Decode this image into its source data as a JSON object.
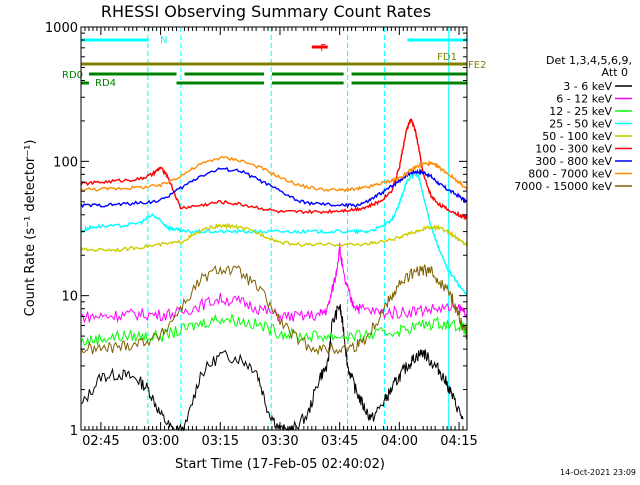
{
  "chart_data": {
    "type": "line",
    "title": "RHESSI Observing Summary Count Rates",
    "xlabel": "Start Time (17-Feb-05 02:40:02)",
    "ylabel": "Count Rate (s⁻¹ detector⁻¹)",
    "yscale": "log",
    "ylim": [
      1,
      1000
    ],
    "xlim_minutes": [
      0,
      97
    ],
    "x_ticks": [
      {
        "label": "02:45",
        "min": 5
      },
      {
        "label": "03:00",
        "min": 20
      },
      {
        "label": "03:15",
        "min": 35
      },
      {
        "label": "03:30",
        "min": 50
      },
      {
        "label": "03:45",
        "min": 65
      },
      {
        "label": "04:00",
        "min": 80
      },
      {
        "label": "04:15",
        "min": 95
      }
    ],
    "y_ticks": [
      {
        "label": "1",
        "value": 1
      },
      {
        "label": "10",
        "value": 10
      },
      {
        "label": "100",
        "value": 100
      },
      {
        "label": "1000",
        "value": 1000
      }
    ],
    "legend_title_1": "Det 1,3,4,5,6,9,",
    "legend_title_2": "Att 0",
    "legend_placement": "right",
    "series": [
      {
        "name": "3 - 6 keV",
        "color": "#000000",
        "x": [
          0,
          5,
          10,
          14,
          17,
          20,
          23,
          26,
          30,
          35,
          40,
          44,
          47,
          50,
          53,
          57,
          60,
          62,
          63,
          65,
          66,
          67,
          69,
          71,
          73,
          76,
          78,
          80,
          82,
          84,
          86,
          88,
          90,
          92,
          94,
          96
        ],
        "y": [
          1.5,
          2.5,
          2.6,
          2.4,
          2.0,
          1.3,
          1.0,
          1.0,
          2.6,
          3.6,
          3.4,
          2.8,
          1.4,
          1.0,
          1.0,
          1.3,
          2.5,
          3.0,
          6.0,
          8.5,
          5.5,
          3.0,
          2.0,
          1.5,
          1.2,
          1.6,
          2.0,
          2.5,
          3.0,
          3.5,
          3.8,
          3.2,
          2.8,
          2.2,
          1.6,
          1.2
        ]
      },
      {
        "name": "6 - 12 keV",
        "color": "#ff00ff",
        "x": [
          0,
          5,
          10,
          15,
          20,
          25,
          30,
          35,
          40,
          45,
          50,
          55,
          60,
          62,
          64,
          65,
          66,
          68,
          70,
          75,
          80,
          85,
          90,
          95,
          97
        ],
        "y": [
          7.0,
          7.0,
          7.2,
          7.3,
          7.2,
          7.5,
          8.5,
          9.5,
          9.0,
          8.0,
          7.0,
          7.0,
          7.2,
          8.0,
          14,
          23,
          14,
          9.0,
          8.0,
          7.5,
          7.5,
          7.8,
          8.0,
          8.0,
          7.5
        ]
      },
      {
        "name": "12 - 25 keV",
        "color": "#00ff00",
        "x": [
          0,
          5,
          10,
          15,
          20,
          25,
          30,
          35,
          40,
          45,
          50,
          55,
          60,
          65,
          70,
          75,
          80,
          85,
          90,
          95,
          97
        ],
        "y": [
          4.5,
          4.8,
          5.0,
          5.0,
          5.0,
          5.5,
          6.2,
          6.8,
          6.5,
          6.0,
          5.3,
          5.0,
          5.0,
          5.0,
          5.0,
          5.2,
          5.5,
          6.0,
          6.3,
          6.0,
          5.5
        ]
      },
      {
        "name": "25 - 50 keV",
        "color": "#00ffff",
        "x": [
          0,
          2,
          5,
          10,
          15,
          18,
          20,
          22,
          24,
          26,
          30,
          35,
          40,
          45,
          50,
          55,
          60,
          65,
          69,
          72,
          75,
          78,
          80,
          81,
          82,
          84,
          85,
          86,
          88,
          90,
          92,
          95,
          97
        ],
        "y": [
          30,
          32,
          33,
          33,
          35,
          40,
          36,
          32,
          31,
          30,
          30,
          30,
          30,
          30,
          30,
          30,
          30,
          30,
          30,
          30,
          32,
          36,
          48,
          60,
          72,
          82,
          75,
          55,
          33,
          22,
          16,
          12,
          10
        ]
      },
      {
        "name": "50 - 100 keV",
        "color": "#cccc00",
        "x": [
          0,
          5,
          10,
          15,
          20,
          25,
          28,
          32,
          35,
          38,
          42,
          46,
          50,
          55,
          60,
          65,
          70,
          75,
          80,
          84,
          87,
          90,
          93,
          95,
          97
        ],
        "y": [
          22,
          22,
          22,
          23,
          24,
          25,
          28,
          32,
          33,
          33,
          31,
          28,
          25,
          24,
          24,
          24,
          24,
          25,
          27,
          30,
          32,
          32,
          29,
          26,
          24
        ]
      },
      {
        "name": "100 - 300 keV",
        "color": "#ff0000",
        "x": [
          0,
          5,
          10,
          15,
          18,
          20,
          22,
          25,
          30,
          35,
          40,
          45,
          50,
          55,
          60,
          65,
          69,
          72,
          75,
          78,
          80,
          81,
          82,
          83,
          84,
          85,
          86,
          88,
          90,
          92,
          95,
          97
        ],
        "y": [
          68,
          70,
          72,
          74,
          80,
          90,
          75,
          45,
          47,
          50,
          48,
          45,
          42,
          42,
          42,
          43,
          44,
          46,
          50,
          60,
          90,
          130,
          180,
          205,
          170,
          120,
          80,
          55,
          48,
          44,
          40,
          38
        ]
      },
      {
        "name": "300 - 800 keV",
        "color": "#0000ff",
        "x": [
          0,
          5,
          10,
          15,
          20,
          25,
          30,
          35,
          40,
          45,
          50,
          55,
          60,
          65,
          69,
          72,
          75,
          78,
          80,
          82,
          84,
          86,
          88,
          90,
          92,
          95,
          97
        ],
        "y": [
          47,
          47,
          48,
          49,
          51,
          63,
          78,
          88,
          85,
          72,
          60,
          50,
          48,
          47,
          47,
          50,
          57,
          65,
          72,
          80,
          84,
          83,
          77,
          68,
          62,
          55,
          50
        ]
      },
      {
        "name": "800 - 7000 keV",
        "color": "#ff8c00",
        "x": [
          0,
          5,
          10,
          15,
          20,
          25,
          30,
          35,
          40,
          45,
          50,
          55,
          60,
          65,
          69,
          72,
          75,
          78,
          80,
          82,
          84,
          86,
          88,
          90,
          92,
          95,
          97
        ],
        "y": [
          62,
          62,
          63,
          64,
          66,
          78,
          95,
          107,
          102,
          90,
          76,
          66,
          62,
          61,
          62,
          64,
          68,
          72,
          75,
          82,
          90,
          96,
          96,
          90,
          82,
          70,
          62
        ]
      },
      {
        "name": "7000 - 15000 keV",
        "color": "#806000",
        "x": [
          0,
          5,
          10,
          15,
          20,
          25,
          30,
          35,
          40,
          45,
          50,
          55,
          60,
          65,
          69,
          72,
          75,
          78,
          80,
          83,
          86,
          88,
          90,
          93,
          95,
          97
        ],
        "y": [
          4.0,
          4.0,
          4.2,
          4.5,
          5.0,
          8.0,
          13,
          16,
          15,
          11,
          6.5,
          4.5,
          4.0,
          4.0,
          4.2,
          5.0,
          7.0,
          10,
          12,
          14.5,
          15.5,
          15,
          13,
          10,
          7,
          5
        ]
      }
    ],
    "flag_bars": [
      {
        "label": "N",
        "color": "#00ffff",
        "segments": [
          [
            0,
            17
          ]
        ]
      },
      {
        "label": "",
        "color": "#00ffff",
        "segments": [
          [
            82,
            97
          ]
        ]
      },
      {
        "label": "F",
        "color": "#ff0000",
        "segments": [
          [
            58,
            62
          ]
        ]
      },
      {
        "label": "FD1",
        "color": "#808000",
        "segments": [
          [
            0,
            97
          ]
        ]
      },
      {
        "label": "FE2",
        "color": "#808000",
        "segments": []
      },
      {
        "label": "RD0",
        "color": "#008000",
        "segments": [
          [
            2,
            24
          ],
          [
            26,
            46
          ],
          [
            48,
            66
          ],
          [
            68,
            97
          ]
        ]
      },
      {
        "label": "RD4",
        "color": "#008000",
        "segments": [
          [
            0,
            2
          ],
          [
            24,
            46
          ],
          [
            48,
            66
          ],
          [
            68,
            97
          ]
        ]
      }
    ],
    "vertical_markers_minutes": [
      0,
      16.8,
      25.1,
      47.8,
      67.0,
      76.3,
      92.4,
      97
    ],
    "grid": false
  },
  "footer": {
    "timestamp": "14-Oct-2021 23:09"
  }
}
